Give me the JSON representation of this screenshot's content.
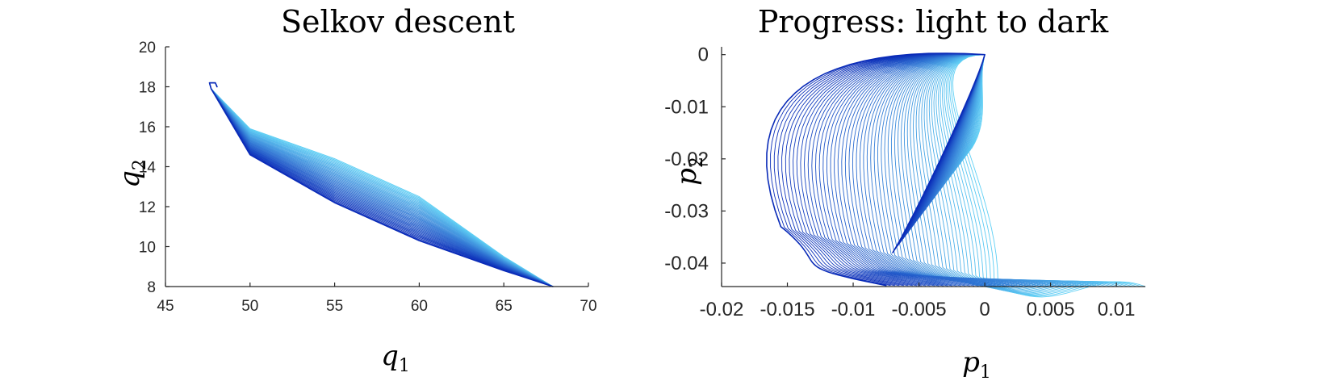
{
  "chart_data": [
    {
      "type": "line",
      "title": "Selkov descent",
      "xlabel": {
        "base": "q",
        "sub": "1"
      },
      "ylabel": {
        "base": "q",
        "sub": "2"
      },
      "xlim": [
        45,
        70
      ],
      "ylim": [
        8,
        20
      ],
      "xticks": [
        45,
        50,
        55,
        60,
        65,
        70
      ],
      "yticks": [
        8,
        10,
        12,
        14,
        16,
        18,
        20
      ],
      "series_family": {
        "count": 40,
        "color_start": "#5fd0f5",
        "color_end": "#0a2bb8",
        "shared_points": [
          [
            67.9,
            8.0
          ],
          [
            47.6,
            18.2
          ]
        ],
        "upper_boundary": [
          [
            47.7,
            17.9
          ],
          [
            50,
            15.9
          ],
          [
            55,
            14.4
          ],
          [
            60,
            12.5
          ],
          [
            65,
            9.5
          ],
          [
            67.9,
            8.0
          ]
        ],
        "lower_boundary": [
          [
            47.7,
            17.9
          ],
          [
            50,
            14.6
          ],
          [
            55,
            12.2
          ],
          [
            60,
            10.3
          ],
          [
            65,
            8.8
          ],
          [
            67.9,
            8.0
          ]
        ]
      }
    },
    {
      "type": "line",
      "title": "Progress: light to dark",
      "xlabel": {
        "base": "p",
        "sub": "1"
      },
      "ylabel": {
        "base": "p",
        "sub": "2"
      },
      "xlim": [
        -0.02,
        0.0122
      ],
      "ylim": [
        -0.0445,
        0.0015
      ],
      "xticks": [
        -0.02,
        -0.015,
        -0.01,
        -0.005,
        0,
        0.005,
        0.01
      ],
      "xtick_labels": [
        "-0.02",
        "-0.015",
        "-0.01",
        "-0.005",
        "0",
        "0.005",
        "0.01"
      ],
      "yticks": [
        0,
        -0.01,
        -0.02,
        -0.03,
        -0.04
      ],
      "ytick_labels": [
        "0",
        "-0.01",
        "-0.02",
        "-0.03",
        "-0.04"
      ],
      "series_family": {
        "count": 60,
        "color_start": "#5fd0f5",
        "color_end": "#0a2bb8",
        "light_start": [
          0.0122,
          -0.0445
        ],
        "dark_start": [
          -0.0075,
          -0.0443
        ],
        "apex": [
          0.0,
          0.0
        ],
        "light_peak": [
          0.001,
          -0.0435
        ],
        "dark_peak": [
          -0.0155,
          -0.033
        ]
      }
    }
  ]
}
